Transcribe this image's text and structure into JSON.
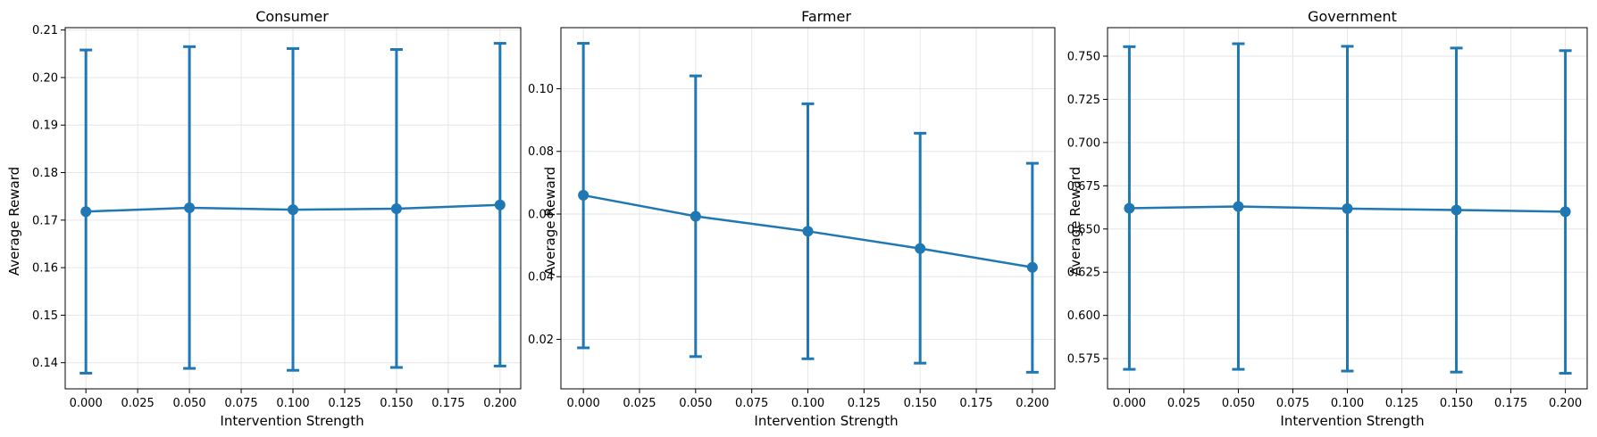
{
  "colors": {
    "series": "#1f77b4",
    "grid": "#e6e6e6",
    "axes": "#000000"
  },
  "chart_data": [
    {
      "type": "line",
      "title": "Consumer",
      "xlabel": "Intervention Strength",
      "ylabel": "Average Reward",
      "x": [
        0.0,
        0.05,
        0.1,
        0.15,
        0.2
      ],
      "y": [
        0.1718,
        0.1726,
        0.1722,
        0.1724,
        0.1732
      ],
      "err_low": [
        0.1378,
        0.1388,
        0.1384,
        0.139,
        0.1393
      ],
      "err_high": [
        0.2058,
        0.2065,
        0.2061,
        0.2059,
        0.2072
      ],
      "xlim": [
        -0.01,
        0.21
      ],
      "ylim": [
        0.1345,
        0.2105
      ],
      "xticks": [
        0.0,
        0.025,
        0.05,
        0.075,
        0.1,
        0.125,
        0.15,
        0.175,
        0.2
      ],
      "xtick_labels": [
        "0.000",
        "0.025",
        "0.050",
        "0.075",
        "0.100",
        "0.125",
        "0.150",
        "0.175",
        "0.200"
      ],
      "yticks": [
        0.14,
        0.15,
        0.16,
        0.17,
        0.18,
        0.19,
        0.2,
        0.21
      ],
      "ytick_labels": [
        "0.14",
        "0.15",
        "0.16",
        "0.17",
        "0.18",
        "0.19",
        "0.20",
        "0.21"
      ],
      "grid": true
    },
    {
      "type": "line",
      "title": "Farmer",
      "xlabel": "Intervention Strength",
      "ylabel": "Average Reward",
      "x": [
        0.0,
        0.05,
        0.1,
        0.15,
        0.2
      ],
      "y": [
        0.066,
        0.0593,
        0.0545,
        0.049,
        0.043
      ],
      "err_low": [
        0.0173,
        0.0145,
        0.0138,
        0.0124,
        0.0095
      ],
      "err_high": [
        0.1145,
        0.1041,
        0.0952,
        0.0858,
        0.0762
      ],
      "xlim": [
        -0.01,
        0.21
      ],
      "ylim": [
        0.0042,
        0.1195
      ],
      "xticks": [
        0.0,
        0.025,
        0.05,
        0.075,
        0.1,
        0.125,
        0.15,
        0.175,
        0.2
      ],
      "xtick_labels": [
        "0.000",
        "0.025",
        "0.050",
        "0.075",
        "0.100",
        "0.125",
        "0.150",
        "0.175",
        "0.200"
      ],
      "yticks": [
        0.02,
        0.04,
        0.06,
        0.08,
        0.1
      ],
      "ytick_labels": [
        "0.02",
        "0.04",
        "0.06",
        "0.08",
        "0.10"
      ],
      "grid": true
    },
    {
      "type": "line",
      "title": "Government",
      "xlabel": "Intervention Strength",
      "ylabel": "Average Reward",
      "x": [
        0.0,
        0.05,
        0.1,
        0.15,
        0.2
      ],
      "y": [
        0.662,
        0.663,
        0.6618,
        0.661,
        0.66
      ],
      "err_low": [
        0.5688,
        0.5688,
        0.5678,
        0.5672,
        0.5665
      ],
      "err_high": [
        0.7555,
        0.7572,
        0.7557,
        0.7547,
        0.7532
      ],
      "xlim": [
        -0.01,
        0.21
      ],
      "ylim": [
        0.5575,
        0.7665
      ],
      "xticks": [
        0.0,
        0.025,
        0.05,
        0.075,
        0.1,
        0.125,
        0.15,
        0.175,
        0.2
      ],
      "xtick_labels": [
        "0.000",
        "0.025",
        "0.050",
        "0.075",
        "0.100",
        "0.125",
        "0.150",
        "0.175",
        "0.200"
      ],
      "yticks": [
        0.575,
        0.6,
        0.625,
        0.65,
        0.675,
        0.7,
        0.725,
        0.75
      ],
      "ytick_labels": [
        "0.575",
        "0.600",
        "0.625",
        "0.650",
        "0.675",
        "0.700",
        "0.725",
        "0.750"
      ],
      "grid": true
    }
  ]
}
